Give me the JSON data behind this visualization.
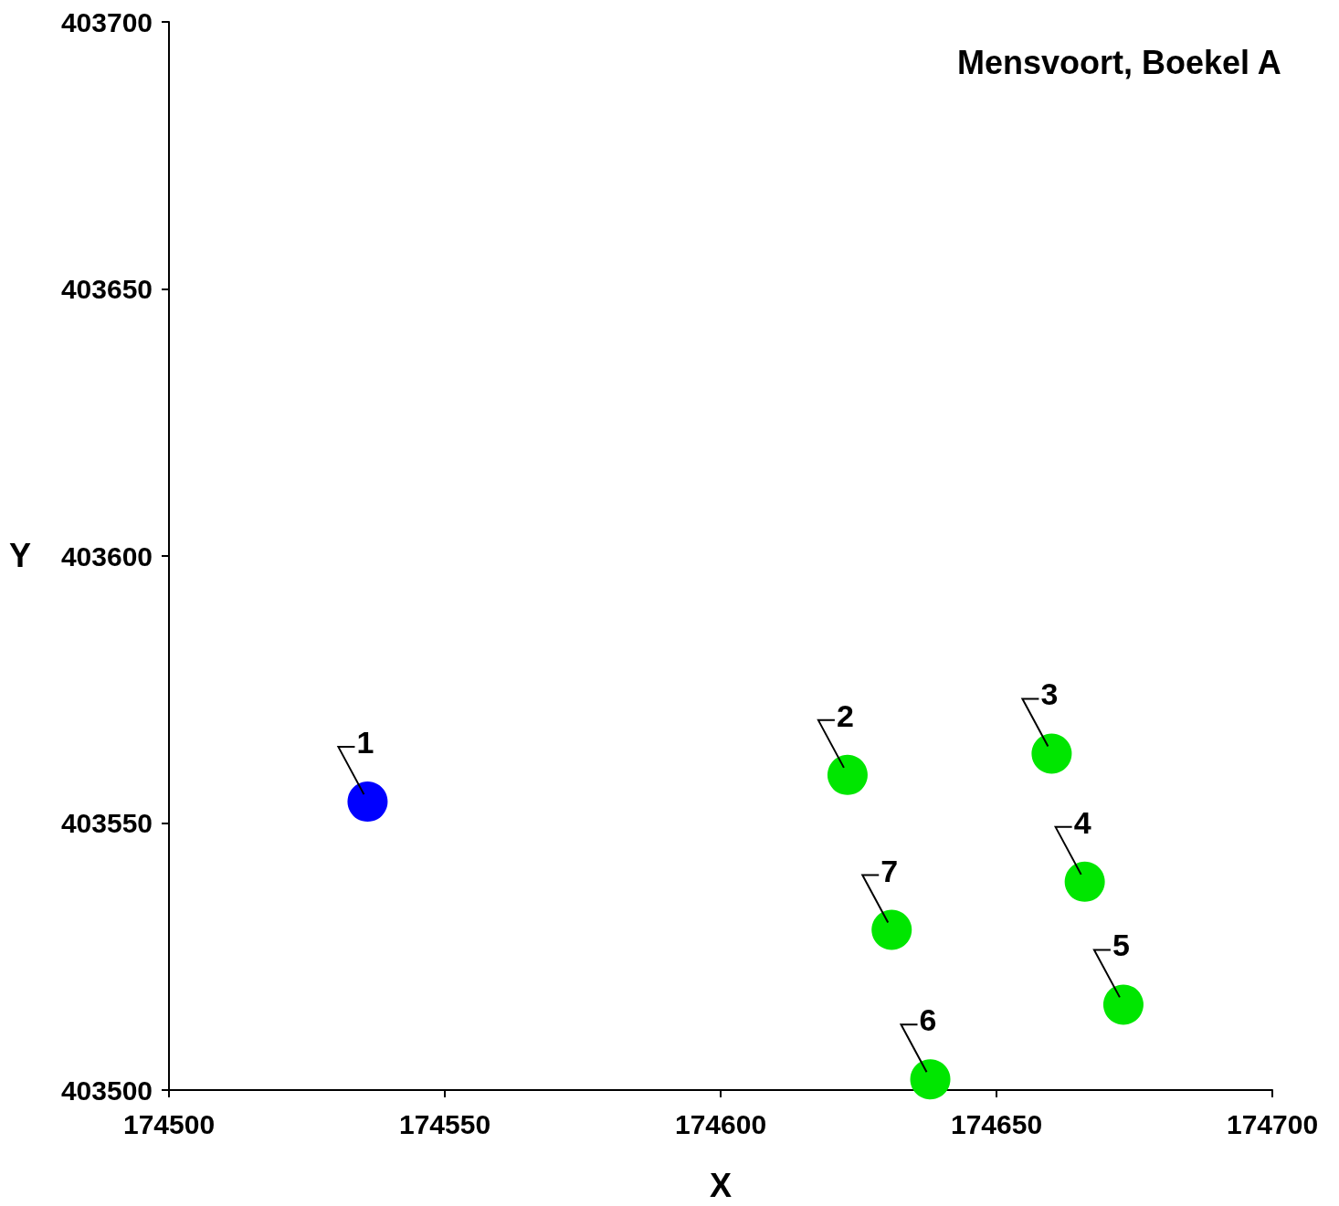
{
  "chart_data": {
    "type": "scatter",
    "title": "Mensvoort, Boekel A",
    "xlabel": "X",
    "ylabel": "Y",
    "xlim": [
      174500,
      174700
    ],
    "xticks": [
      174500,
      174550,
      174600,
      174650,
      174700
    ],
    "ylim": [
      403500,
      403700
    ],
    "yticks": [
      403500,
      403550,
      403600,
      403650,
      403700
    ],
    "grid": false,
    "marker": "circle",
    "series": [
      {
        "color": "#0000ff",
        "x": [
          174536
        ],
        "values": [
          403554
        ]
      },
      {
        "color": "#00e600",
        "x": [
          174623,
          174660,
          174666,
          174673,
          174638,
          174631
        ],
        "values": [
          403559,
          403563,
          403539,
          403516,
          403502,
          403530
        ]
      }
    ],
    "annotations": [
      {
        "text": "1",
        "x": 174536,
        "y": 403554
      },
      {
        "text": "2",
        "x": 174623,
        "y": 403559
      },
      {
        "text": "3",
        "x": 174660,
        "y": 403563
      },
      {
        "text": "4",
        "x": 174666,
        "y": 403539
      },
      {
        "text": "5",
        "x": 174673,
        "y": 403516
      },
      {
        "text": "6",
        "x": 174638,
        "y": 403502
      },
      {
        "text": "7",
        "x": 174631,
        "y": 403530
      }
    ]
  }
}
